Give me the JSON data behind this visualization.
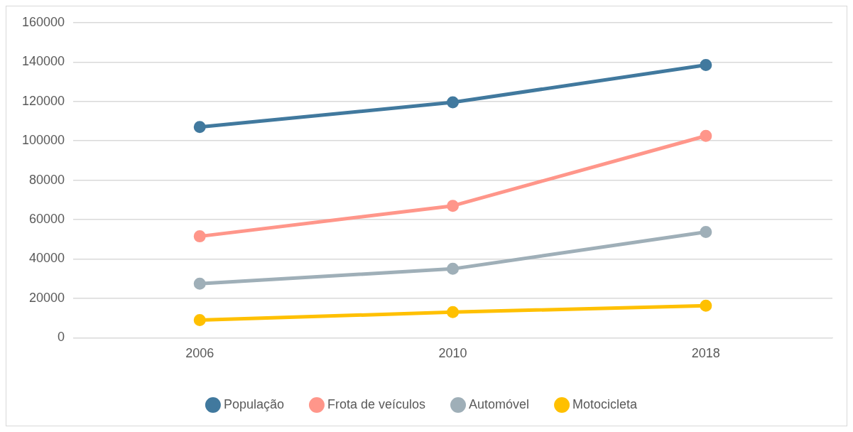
{
  "chart_data": {
    "type": "line",
    "categories": [
      "2006",
      "2010",
      "2018"
    ],
    "series": [
      {
        "name": "População",
        "color": "#41799e",
        "values": [
          107000,
          119500,
          138500
        ]
      },
      {
        "name": "Frota de veículos",
        "color": "#ff968a",
        "values": [
          51500,
          67000,
          102500
        ]
      },
      {
        "name": "Automóvel",
        "color": "#9fafb8",
        "values": [
          27500,
          35000,
          53700
        ]
      },
      {
        "name": "Motocicleta",
        "color": "#ffc000",
        "values": [
          9000,
          13000,
          16300
        ]
      }
    ],
    "ylim": [
      0,
      160000
    ],
    "yticks": [
      0,
      20000,
      40000,
      60000,
      80000,
      100000,
      120000,
      140000,
      160000
    ],
    "grid": "y",
    "legend": "bottom",
    "marker": "circle",
    "line_style": "solid"
  }
}
